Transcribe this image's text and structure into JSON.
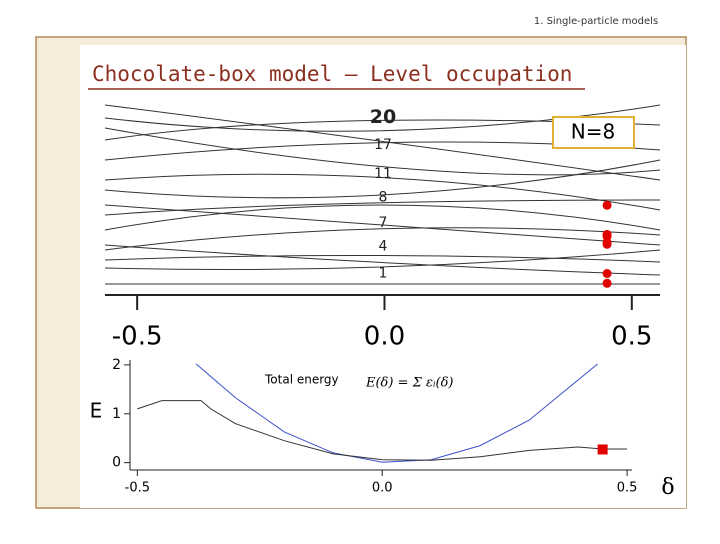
{
  "header": "1. Single-particle models",
  "title": "Chocolate-box model – Level occupation",
  "chart_data": [
    {
      "type": "scatter",
      "annotation": "N=8",
      "xlim": [
        -0.565,
        0.557
      ],
      "xticks": [
        -0.5,
        {
          "value": 0,
          "label": "0.0"
        },
        0.5
      ],
      "ylim": [
        0,
        10
      ],
      "levels": [
        {
          "label": "20",
          "value": 9.1
        },
        {
          "label": "17",
          "value": 7.7
        },
        {
          "label": "11",
          "value": 6.2
        },
        {
          "label": "8",
          "value": 5.0
        },
        {
          "label": "7",
          "value": 3.7
        },
        {
          "label": "4",
          "value": 2.5
        },
        {
          "label": "1",
          "value": 1.1
        }
      ],
      "series": [
        {
          "color": "#e00000",
          "x": [
            0.45,
            0.45,
            0.45,
            0.45,
            0.45,
            0.45,
            0.45,
            0.45
          ],
          "values": [
            4.6,
            3.1,
            3.1,
            3.0,
            2.7,
            2.6,
            1.1,
            0.6
          ]
        }
      ]
    },
    {
      "type": "line",
      "annotation": "Total energy",
      "formula": "E(δ) = Σ εᵢ(δ)",
      "ylabel": "E",
      "xlabel": "δ",
      "xlim": [
        -0.515,
        0.51
      ],
      "xticks": [
        -0.5,
        {
          "value": 0,
          "label": "0.0"
        },
        0.5
      ],
      "ylim": [
        -0.15,
        2.1
      ],
      "yticks": [
        0,
        1,
        2
      ],
      "series": [
        {
          "color": "#3a4fc8",
          "x": [
            -0.38,
            -0.3,
            -0.2,
            -0.1,
            0,
            0.1,
            0.2,
            0.3,
            0.44
          ],
          "values": [
            2.02,
            1.33,
            0.63,
            0.2,
            0.01,
            0.06,
            0.35,
            0.87,
            2.02
          ]
        },
        {
          "color": "#333333",
          "x": [
            -0.5,
            -0.45,
            -0.4,
            -0.37,
            -0.35,
            -0.3,
            -0.2,
            -0.1,
            0,
            0.1,
            0.2,
            0.3,
            0.4,
            0.45,
            0.5
          ],
          "values": [
            1.1,
            1.27,
            1.27,
            1.27,
            1.1,
            0.8,
            0.45,
            0.18,
            0.06,
            0.05,
            0.12,
            0.25,
            0.32,
            0.28,
            0.28
          ]
        },
        {
          "color": "#e00000",
          "x": [
            0.45
          ],
          "values": [
            0.27
          ]
        }
      ]
    }
  ]
}
